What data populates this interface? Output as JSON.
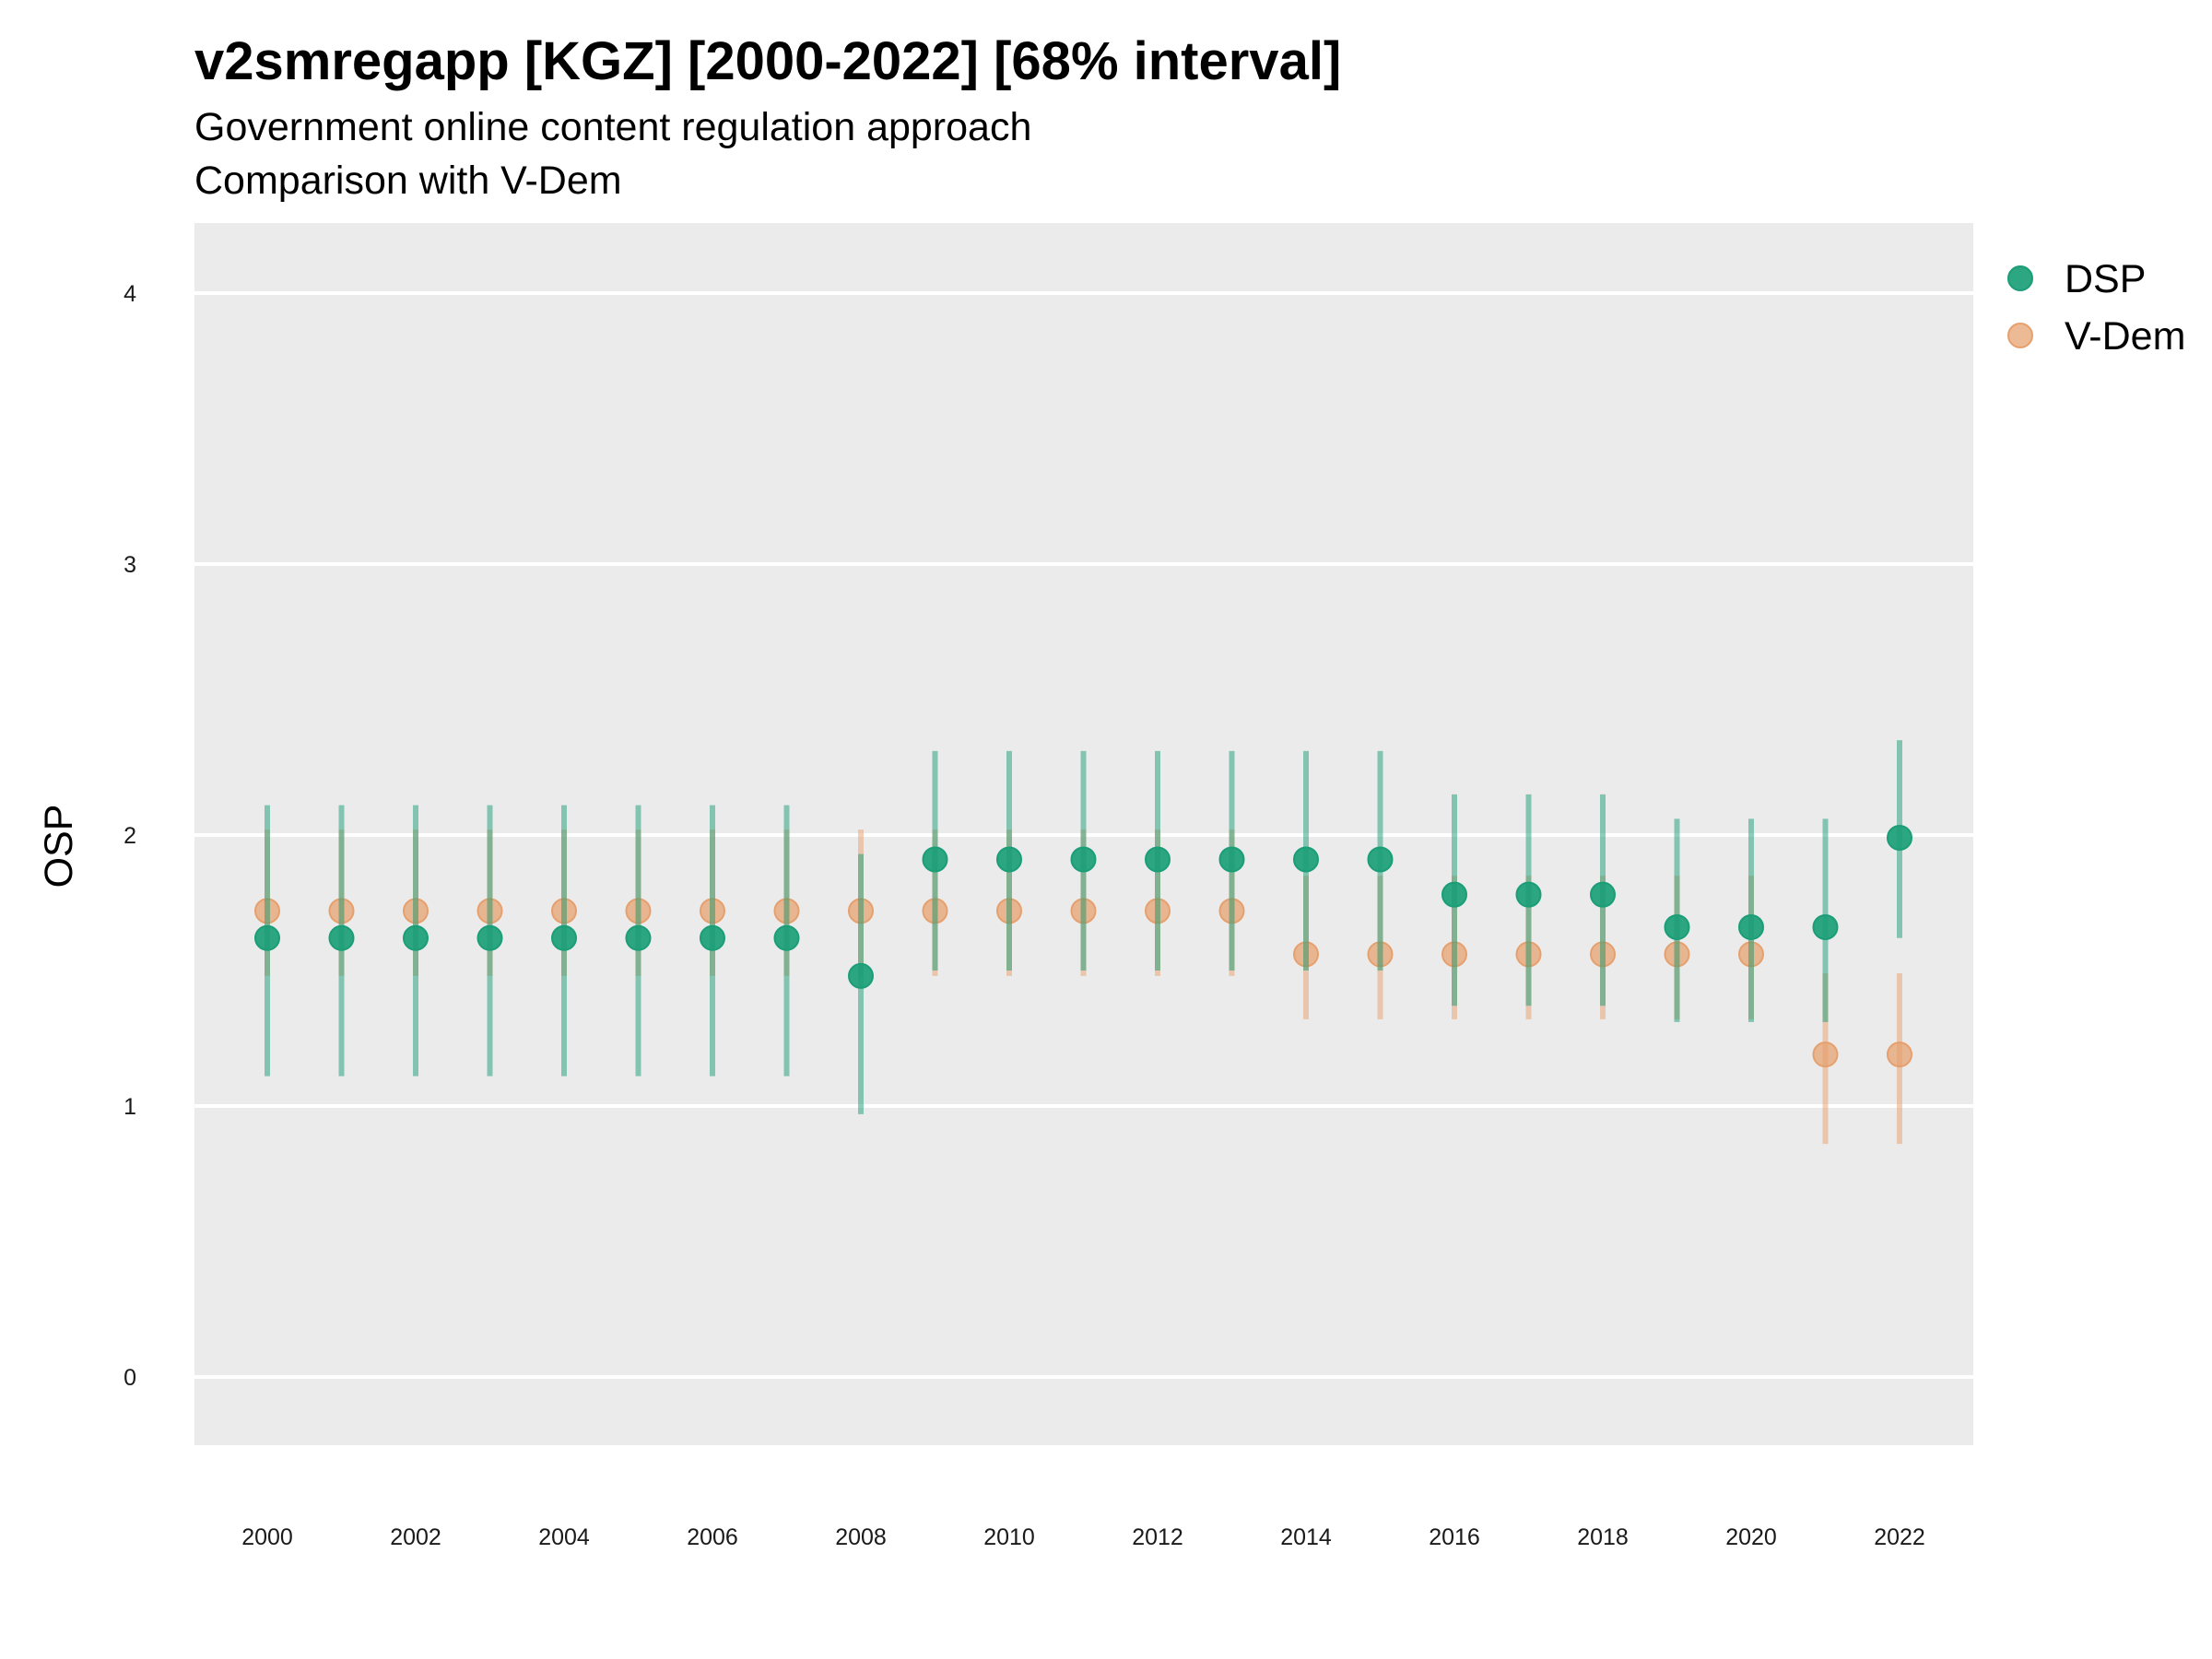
{
  "chart_data": {
    "type": "scatter",
    "title": "v2smregapp [KGZ] [2000-2022] [68% interval]",
    "subtitle": [
      "Government online content regulation approach",
      "Comparison with V-Dem"
    ],
    "xlabel": "",
    "ylabel": "OSP",
    "xlim": [
      1999,
      2023
    ],
    "ylim": [
      -0.25,
      4.25
    ],
    "xticks": [
      2000,
      2002,
      2004,
      2006,
      2008,
      2010,
      2012,
      2014,
      2016,
      2018,
      2020,
      2022
    ],
    "yticks": [
      0,
      1,
      2,
      3,
      4
    ],
    "grid": true,
    "legend_position": "right",
    "x": [
      2000,
      2001,
      2002,
      2003,
      2004,
      2005,
      2006,
      2007,
      2008,
      2009,
      2010,
      2011,
      2012,
      2013,
      2014,
      2015,
      2016,
      2017,
      2018,
      2019,
      2020,
      2021,
      2022
    ],
    "series": [
      {
        "name": "V-Dem",
        "color": "#E6A06E",
        "values": [
          1.72,
          1.72,
          1.72,
          1.72,
          1.72,
          1.72,
          1.72,
          1.72,
          1.72,
          1.72,
          1.72,
          1.72,
          1.72,
          1.72,
          1.56,
          1.56,
          1.56,
          1.56,
          1.56,
          1.56,
          1.56,
          1.19,
          1.19
        ],
        "lower": [
          1.48,
          1.48,
          1.48,
          1.48,
          1.48,
          1.48,
          1.48,
          1.48,
          1.48,
          1.48,
          1.48,
          1.48,
          1.48,
          1.48,
          1.32,
          1.32,
          1.32,
          1.32,
          1.32,
          1.32,
          1.32,
          0.86,
          0.86
        ],
        "upper": [
          2.02,
          2.02,
          2.02,
          2.02,
          2.02,
          2.02,
          2.02,
          2.02,
          2.02,
          2.02,
          2.02,
          2.02,
          2.02,
          2.02,
          1.85,
          1.85,
          1.85,
          1.85,
          1.85,
          1.85,
          1.85,
          1.49,
          1.49
        ]
      },
      {
        "name": "DSP",
        "color": "#1B9E77",
        "values": [
          1.62,
          1.62,
          1.62,
          1.62,
          1.62,
          1.62,
          1.62,
          1.62,
          1.48,
          1.91,
          1.91,
          1.91,
          1.91,
          1.91,
          1.91,
          1.91,
          1.78,
          1.78,
          1.78,
          1.66,
          1.66,
          1.66,
          1.99
        ],
        "lower": [
          1.11,
          1.11,
          1.11,
          1.11,
          1.11,
          1.11,
          1.11,
          1.11,
          0.97,
          1.5,
          1.5,
          1.5,
          1.5,
          1.5,
          1.5,
          1.5,
          1.37,
          1.37,
          1.37,
          1.31,
          1.31,
          1.31,
          1.62
        ],
        "upper": [
          2.11,
          2.11,
          2.11,
          2.11,
          2.11,
          2.11,
          2.11,
          2.11,
          1.93,
          2.31,
          2.31,
          2.31,
          2.31,
          2.31,
          2.31,
          2.31,
          2.15,
          2.15,
          2.15,
          2.06,
          2.06,
          2.06,
          2.35
        ]
      }
    ],
    "legend": [
      {
        "name": "DSP",
        "color": "#1B9E77"
      },
      {
        "name": "V-Dem",
        "color": "#E6A06E"
      }
    ]
  }
}
